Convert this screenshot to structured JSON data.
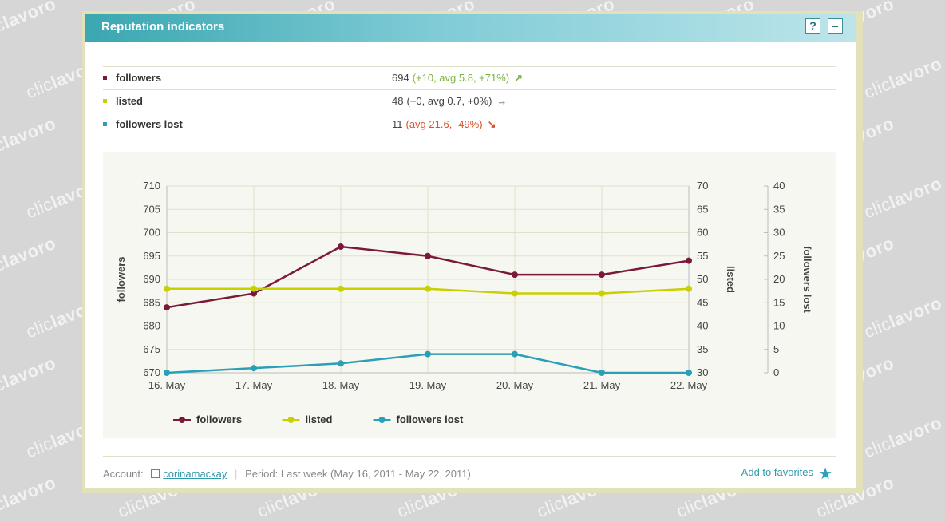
{
  "watermark": {
    "light": "clic",
    "bold": "lavoro"
  },
  "panel": {
    "title": "Reputation indicators",
    "help_label": "?",
    "minimize_label": "–"
  },
  "indicators": [
    {
      "label": "followers",
      "value": "694",
      "delta": "(+10, avg 5.8, +71%)",
      "color": "#7a1a3a",
      "delta_color": "#7cb342",
      "arrow": "↗"
    },
    {
      "label": "listed",
      "value": "48",
      "delta": "(+0, avg 0.7, +0%)",
      "color": "#c8d000",
      "delta_color": "#444444",
      "arrow": "→"
    },
    {
      "label": "followers lost",
      "value": "11",
      "delta": "(avg 21.6, -49%)",
      "color": "#2a9fb8",
      "delta_color": "#d9532b",
      "arrow": "↘"
    }
  ],
  "footer": {
    "account_label": "Account:",
    "account_name": "corinamackay",
    "separator": "|",
    "period_label": "Period:",
    "period_value": "Last week (May 16, 2011 - May 22, 2011)",
    "favorites_label": "Add to favorites"
  },
  "chart_data": {
    "type": "line",
    "categories": [
      "16. May",
      "17. May",
      "18. May",
      "19. May",
      "20. May",
      "21. May",
      "22. May"
    ],
    "series": [
      {
        "name": "followers",
        "axis": "left",
        "color": "#7a1a3a",
        "values": [
          684,
          687,
          697,
          695,
          691,
          691,
          694
        ]
      },
      {
        "name": "listed",
        "axis": "right1",
        "color": "#c8d000",
        "values": [
          48,
          48,
          48,
          48,
          47,
          47,
          48
        ]
      },
      {
        "name": "followers lost",
        "axis": "right2",
        "color": "#2a9fb8",
        "values": [
          0,
          1,
          2,
          4,
          4,
          0,
          0
        ]
      }
    ],
    "axes": {
      "left": {
        "label": "followers",
        "ylim": [
          670,
          710
        ],
        "ticks": [
          670,
          675,
          680,
          685,
          690,
          695,
          700,
          705,
          710
        ]
      },
      "right1": {
        "label": "listed",
        "ylim": [
          30,
          70
        ],
        "ticks": [
          30,
          35,
          40,
          45,
          50,
          55,
          60,
          65,
          70
        ]
      },
      "right2": {
        "label": "followers lost",
        "ylim": [
          0,
          40
        ],
        "ticks": [
          0,
          5,
          10,
          15,
          20,
          25,
          30,
          35,
          40
        ]
      }
    },
    "grid": true,
    "legend": "bottom-left"
  }
}
